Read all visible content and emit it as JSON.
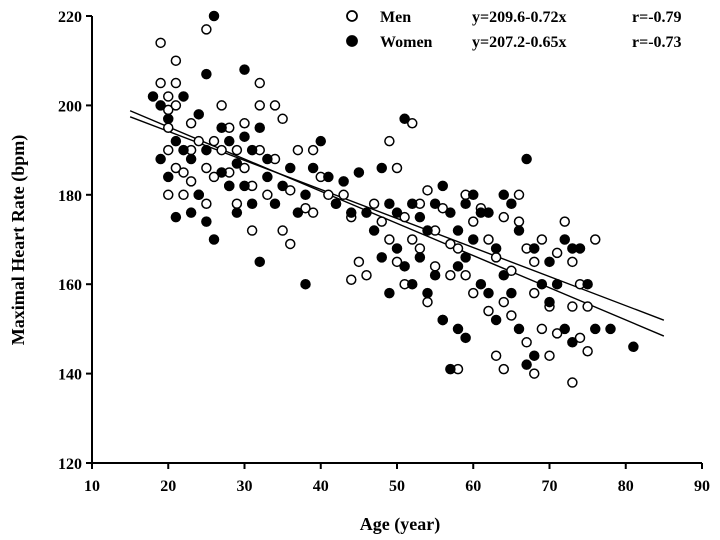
{
  "chart_data": {
    "type": "scatter",
    "xlabel": "Age (year)",
    "ylabel": "Maximal Heart Rate (bpm)",
    "xlim": [
      10,
      90
    ],
    "ylim": [
      120,
      220
    ],
    "xticks": [
      10,
      20,
      30,
      40,
      50,
      60,
      70,
      80,
      90
    ],
    "yticks": [
      120,
      140,
      160,
      180,
      200,
      220
    ],
    "legend_position": "top-right",
    "legend": [
      {
        "name": "Men",
        "marker": "open-circle",
        "equation": "y=209.6-0.72x",
        "r": "r=-0.79"
      },
      {
        "name": "Women",
        "marker": "filled-circle",
        "equation": "y=207.2-0.65x",
        "r": "r=-0.73"
      }
    ],
    "regression_lines": [
      {
        "name": "Men",
        "intercept": 209.6,
        "slope": -0.72,
        "x_range": [
          15,
          85
        ]
      },
      {
        "name": "Women",
        "intercept": 207.2,
        "slope": -0.65,
        "x_range": [
          15,
          85
        ]
      }
    ],
    "series": [
      {
        "name": "Men",
        "marker": "open",
        "points": [
          [
            19,
            214
          ],
          [
            19,
            205
          ],
          [
            20,
            202
          ],
          [
            20,
            199
          ],
          [
            21,
            210
          ],
          [
            21,
            205
          ],
          [
            21,
            200
          ],
          [
            20,
            195
          ],
          [
            20,
            190
          ],
          [
            21,
            186
          ],
          [
            20,
            180
          ],
          [
            22,
            185
          ],
          [
            22,
            180
          ],
          [
            23,
            196
          ],
          [
            23,
            190
          ],
          [
            23,
            183
          ],
          [
            24,
            180
          ],
          [
            24,
            192
          ],
          [
            25,
            217
          ],
          [
            25,
            186
          ],
          [
            25,
            178
          ],
          [
            26,
            184
          ],
          [
            26,
            192
          ],
          [
            27,
            200
          ],
          [
            27,
            190
          ],
          [
            28,
            195
          ],
          [
            28,
            185
          ],
          [
            28,
            182
          ],
          [
            29,
            190
          ],
          [
            29,
            178
          ],
          [
            30,
            196
          ],
          [
            30,
            186
          ],
          [
            31,
            182
          ],
          [
            31,
            172
          ],
          [
            32,
            205
          ],
          [
            32,
            200
          ],
          [
            32,
            190
          ],
          [
            33,
            180
          ],
          [
            34,
            200
          ],
          [
            34,
            188
          ],
          [
            35,
            197
          ],
          [
            35,
            172
          ],
          [
            36,
            181
          ],
          [
            36,
            169
          ],
          [
            37,
            190
          ],
          [
            38,
            177
          ],
          [
            39,
            190
          ],
          [
            39,
            176
          ],
          [
            40,
            184
          ],
          [
            41,
            180
          ],
          [
            42,
            178
          ],
          [
            43,
            180
          ],
          [
            44,
            175
          ],
          [
            44,
            161
          ],
          [
            45,
            165
          ],
          [
            46,
            162
          ],
          [
            47,
            178
          ],
          [
            48,
            174
          ],
          [
            49,
            192
          ],
          [
            49,
            170
          ],
          [
            50,
            186
          ],
          [
            50,
            165
          ],
          [
            51,
            175
          ],
          [
            51,
            160
          ],
          [
            52,
            196
          ],
          [
            52,
            170
          ],
          [
            53,
            178
          ],
          [
            53,
            168
          ],
          [
            54,
            181
          ],
          [
            54,
            156
          ],
          [
            55,
            172
          ],
          [
            55,
            164
          ],
          [
            56,
            177
          ],
          [
            56,
            152
          ],
          [
            57,
            169
          ],
          [
            57,
            162
          ],
          [
            58,
            168
          ],
          [
            58,
            141
          ],
          [
            59,
            180
          ],
          [
            59,
            162
          ],
          [
            60,
            174
          ],
          [
            60,
            158
          ],
          [
            61,
            177
          ],
          [
            62,
            170
          ],
          [
            62,
            154
          ],
          [
            63,
            166
          ],
          [
            63,
            144
          ],
          [
            64,
            175
          ],
          [
            64,
            156
          ],
          [
            64,
            141
          ],
          [
            65,
            163
          ],
          [
            65,
            153
          ],
          [
            66,
            174
          ],
          [
            66,
            180
          ],
          [
            67,
            168
          ],
          [
            67,
            147
          ],
          [
            68,
            165
          ],
          [
            68,
            158
          ],
          [
            68,
            140
          ],
          [
            69,
            170
          ],
          [
            69,
            150
          ],
          [
            70,
            155
          ],
          [
            70,
            144
          ],
          [
            71,
            149
          ],
          [
            71,
            167
          ],
          [
            72,
            174
          ],
          [
            73,
            165
          ],
          [
            73,
            155
          ],
          [
            73,
            138
          ],
          [
            74,
            160
          ],
          [
            74,
            148
          ],
          [
            75,
            155
          ],
          [
            75,
            145
          ],
          [
            76,
            170
          ]
        ]
      },
      {
        "name": "Women",
        "marker": "filled",
        "points": [
          [
            18,
            202
          ],
          [
            19,
            200
          ],
          [
            19,
            188
          ],
          [
            20,
            197
          ],
          [
            20,
            184
          ],
          [
            21,
            192
          ],
          [
            21,
            175
          ],
          [
            22,
            202
          ],
          [
            22,
            190
          ],
          [
            23,
            188
          ],
          [
            23,
            176
          ],
          [
            24,
            198
          ],
          [
            24,
            180
          ],
          [
            25,
            207
          ],
          [
            25,
            190
          ],
          [
            25,
            174
          ],
          [
            26,
            220
          ],
          [
            26,
            170
          ],
          [
            27,
            185
          ],
          [
            27,
            195
          ],
          [
            28,
            192
          ],
          [
            28,
            182
          ],
          [
            29,
            187
          ],
          [
            29,
            176
          ],
          [
            30,
            208
          ],
          [
            30,
            193
          ],
          [
            30,
            182
          ],
          [
            31,
            190
          ],
          [
            31,
            178
          ],
          [
            32,
            165
          ],
          [
            32,
            195
          ],
          [
            33,
            184
          ],
          [
            33,
            188
          ],
          [
            34,
            178
          ],
          [
            35,
            182
          ],
          [
            36,
            186
          ],
          [
            37,
            176
          ],
          [
            38,
            180
          ],
          [
            38,
            160
          ],
          [
            39,
            186
          ],
          [
            40,
            192
          ],
          [
            41,
            184
          ],
          [
            42,
            178
          ],
          [
            43,
            183
          ],
          [
            44,
            176
          ],
          [
            45,
            185
          ],
          [
            46,
            176
          ],
          [
            47,
            172
          ],
          [
            48,
            186
          ],
          [
            48,
            166
          ],
          [
            49,
            178
          ],
          [
            49,
            158
          ],
          [
            50,
            176
          ],
          [
            50,
            168
          ],
          [
            51,
            197
          ],
          [
            51,
            164
          ],
          [
            52,
            178
          ],
          [
            52,
            160
          ],
          [
            53,
            175
          ],
          [
            53,
            166
          ],
          [
            54,
            172
          ],
          [
            54,
            158
          ],
          [
            55,
            178
          ],
          [
            55,
            162
          ],
          [
            56,
            182
          ],
          [
            56,
            152
          ],
          [
            57,
            176
          ],
          [
            57,
            141
          ],
          [
            58,
            172
          ],
          [
            58,
            164
          ],
          [
            58,
            150
          ],
          [
            59,
            178
          ],
          [
            59,
            166
          ],
          [
            59,
            148
          ],
          [
            60,
            180
          ],
          [
            60,
            170
          ],
          [
            61,
            176
          ],
          [
            61,
            160
          ],
          [
            62,
            176
          ],
          [
            62,
            158
          ],
          [
            63,
            168
          ],
          [
            63,
            152
          ],
          [
            64,
            180
          ],
          [
            64,
            162
          ],
          [
            65,
            178
          ],
          [
            65,
            158
          ],
          [
            66,
            172
          ],
          [
            66,
            150
          ],
          [
            67,
            188
          ],
          [
            67,
            142
          ],
          [
            68,
            168
          ],
          [
            68,
            144
          ],
          [
            69,
            160
          ],
          [
            70,
            165
          ],
          [
            70,
            156
          ],
          [
            71,
            160
          ],
          [
            72,
            170
          ],
          [
            72,
            150
          ],
          [
            73,
            168
          ],
          [
            73,
            147
          ],
          [
            74,
            168
          ],
          [
            75,
            160
          ],
          [
            76,
            150
          ],
          [
            78,
            150
          ],
          [
            81,
            146
          ]
        ]
      }
    ]
  }
}
